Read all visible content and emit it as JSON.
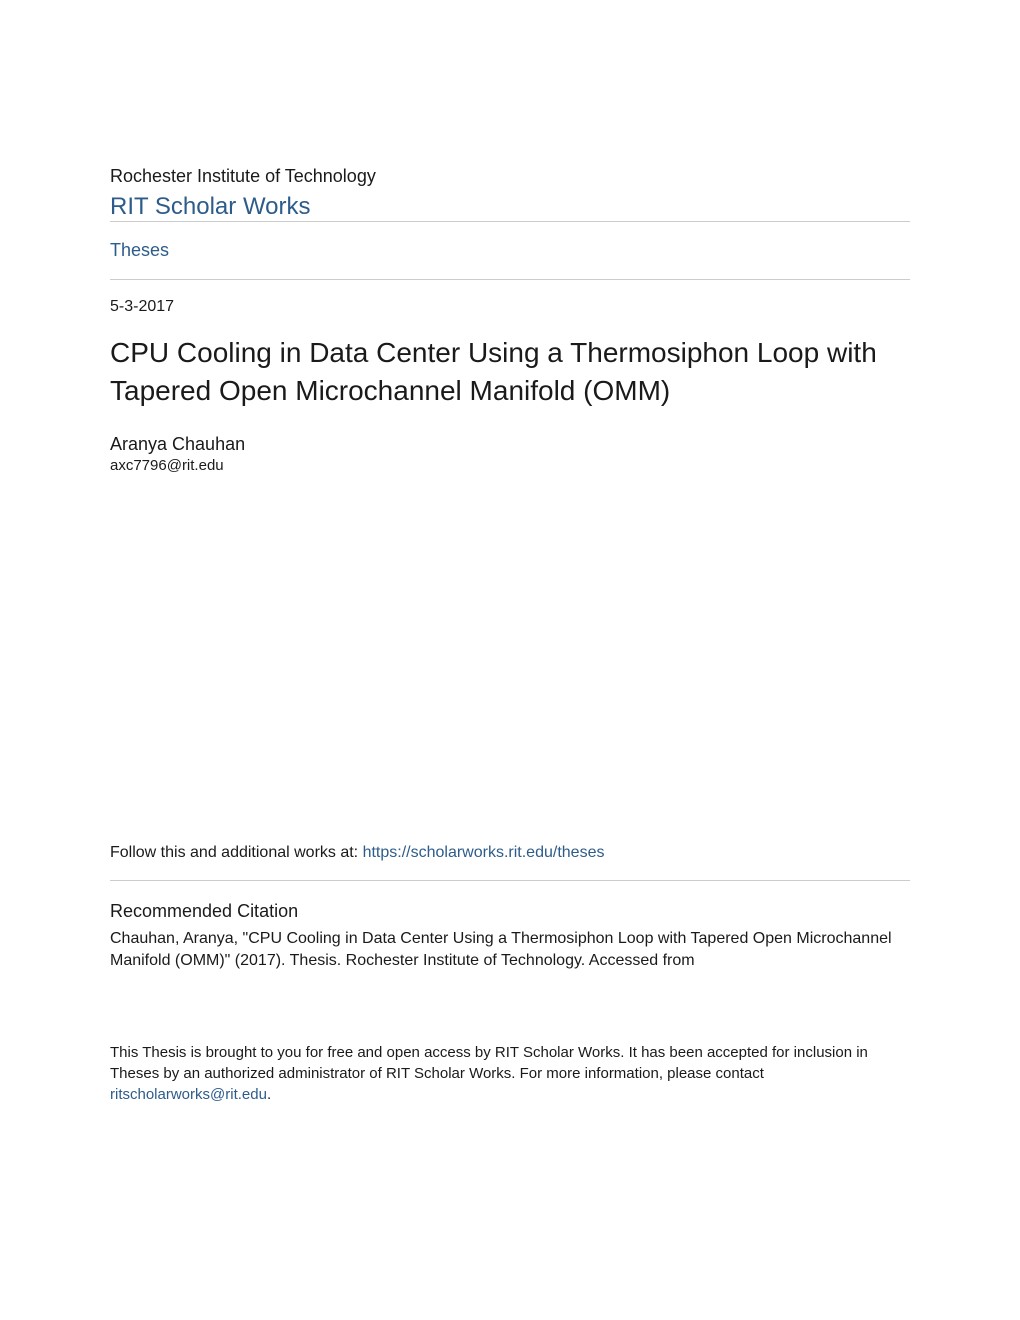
{
  "header": {
    "institution": "Rochester Institute of Technology",
    "site_title": "RIT Scholar Works"
  },
  "nav": {
    "section_link": "Theses"
  },
  "metadata": {
    "date": "5-3-2017"
  },
  "document": {
    "title": "CPU Cooling in Data Center Using a Thermosiphon Loop with Tapered Open Microchannel Manifold (OMM)",
    "author_name": "Aranya Chauhan",
    "author_email": "axc7796@rit.edu"
  },
  "follow": {
    "prefix": "Follow this and additional works at: ",
    "url": "https://scholarworks.rit.edu/theses"
  },
  "citation": {
    "heading": "Recommended Citation",
    "text": "Chauhan, Aranya, \"CPU Cooling in Data Center Using a Thermosiphon Loop with Tapered Open Microchannel Manifold (OMM)\" (2017). Thesis. Rochester Institute of Technology. Accessed from"
  },
  "footer": {
    "text_prefix": "This Thesis is brought to you for free and open access by RIT Scholar Works. It has been accepted for inclusion in Theses by an authorized administrator of RIT Scholar Works. For more information, please contact ",
    "email": "ritscholarworks@rit.edu",
    "text_suffix": "."
  },
  "colors": {
    "link_color": "#2e5c8a",
    "text_color": "#1a1a1a",
    "divider_color": "#cccccc",
    "background_color": "#ffffff"
  },
  "typography": {
    "font_family": "Arial, Helvetica, sans-serif",
    "institution_fontsize": 18,
    "site_title_fontsize": 24,
    "section_link_fontsize": 18,
    "date_fontsize": 16,
    "title_fontsize": 28,
    "author_name_fontsize": 18,
    "author_email_fontsize": 15,
    "body_fontsize": 16,
    "citation_heading_fontsize": 18,
    "footer_fontsize": 15
  }
}
